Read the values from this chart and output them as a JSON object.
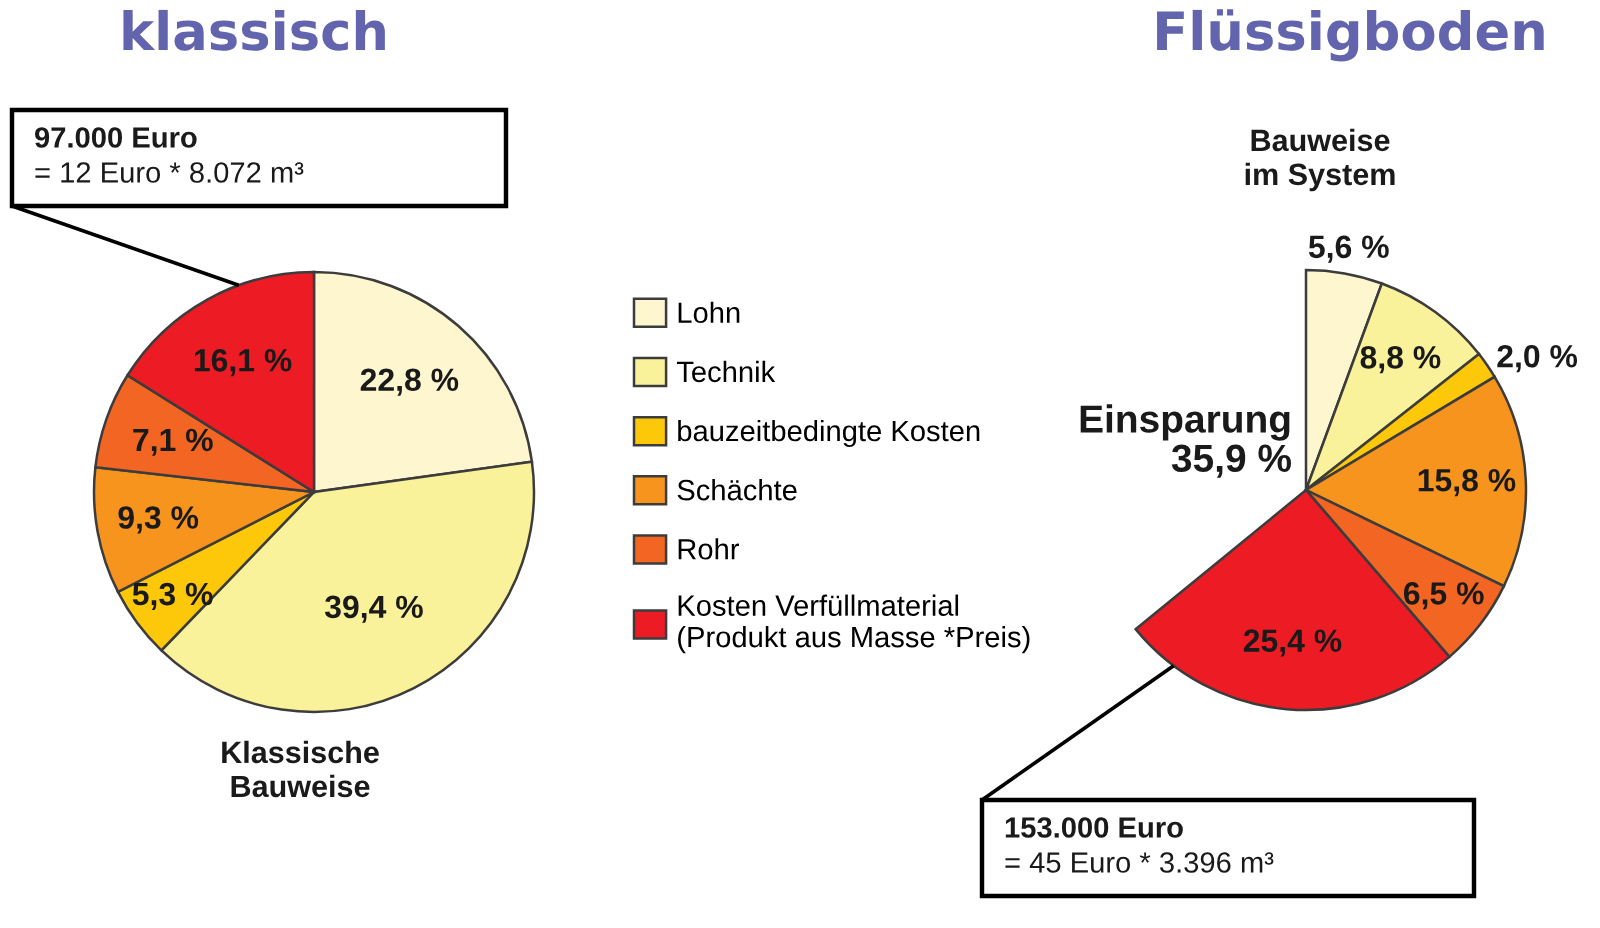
{
  "chart_data": [
    {
      "type": "pie",
      "title": "klassisch",
      "xlabel": "Klassische\nBauweise",
      "categories": [
        "Lohn",
        "Technik",
        "bauzeitbedingte Kosten",
        "Schächte",
        "Rohr",
        "Kosten Verfüllmaterial\n(Produkt aus Masse *Preis)"
      ],
      "values": [
        22.8,
        39.4,
        5.3,
        9.3,
        7.1,
        16.1
      ],
      "colors": [
        "#fdf6cf",
        "#faf19b",
        "#fdc70a",
        "#f7941d",
        "#f26522",
        "#ed1c24"
      ],
      "value_labels": [
        "22,8 %",
        "39,4 %",
        "5,3 %",
        "9,3 %",
        "7,1 %",
        "16,1 %"
      ],
      "legend": "right",
      "annotations": [
        "97.000 Euro\n= 12 Euro * 8.072 m³"
      ]
    },
    {
      "type": "pie",
      "title": "Flüssigboden",
      "subtitle": "Bauweise\nim System",
      "categories": [
        null,
        null,
        null,
        null,
        null,
        null
      ],
      "values": [
        5.6,
        8.8,
        2.0,
        15.8,
        6.5,
        25.4
      ],
      "colors": [
        "#fdf6cf",
        "#faf19b",
        "#fdc70a",
        "#f7941d",
        "#f26522",
        "#ed1c24"
      ],
      "value_labels": [
        "5,6 %",
        "8,8 %",
        "2,0 %",
        "15,8 %",
        "6,5 %",
        "25,4 %"
      ],
      "annotations": [
        "Einsparung\n35,9 %",
        "153.000 Euro\n= 45 Euro * 3.396 m³"
      ]
    }
  ]
}
